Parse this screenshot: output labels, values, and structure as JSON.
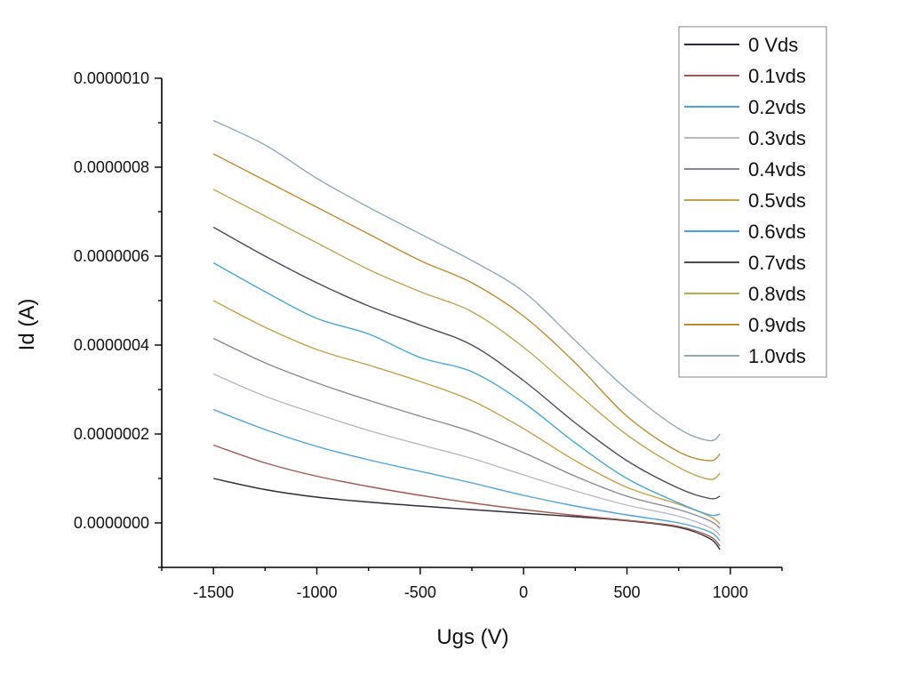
{
  "chart_data": {
    "type": "line",
    "xlabel": "Ugs (V)",
    "ylabel": "Id (A)",
    "xlim": [
      -1750,
      1250
    ],
    "ylim": [
      -1e-07,
      1e-06
    ],
    "x_ticks": [
      -1500,
      -1000,
      -500,
      0,
      500,
      1000
    ],
    "x_tick_labels": [
      "-1500",
      "-1000",
      "-500",
      "0",
      "500",
      "1000"
    ],
    "y_ticks": [
      0.0,
      2e-07,
      4e-07,
      6e-07,
      8e-07,
      1e-06
    ],
    "y_tick_labels": [
      "0.0000000",
      "0.0000002",
      "0.0000004",
      "0.0000006",
      "0.0000008",
      "0.0000010"
    ],
    "legend_position": "top-right",
    "x": [
      -1500,
      -1250,
      -1000,
      -750,
      -500,
      -250,
      0,
      250,
      500,
      750,
      900,
      950
    ],
    "series": [
      {
        "name": "0 Vds",
        "color": "#2b2b3a",
        "values": [
          1e-07,
          7.5e-08,
          5.8e-08,
          4.7e-08,
          3.8e-08,
          3e-08,
          2.2e-08,
          1.4e-08,
          5e-09,
          -1e-08,
          -3.5e-08,
          -6e-08
        ]
      },
      {
        "name": "0.1vds",
        "color": "#a3584f",
        "values": [
          1.75e-07,
          1.35e-07,
          1.05e-07,
          8.2e-08,
          6.2e-08,
          4.5e-08,
          3e-08,
          1.7e-08,
          6e-09,
          -8e-09,
          -3e-08,
          -5.2e-08
        ]
      },
      {
        "name": "0.2vds",
        "color": "#4ca3dd",
        "values": [
          2.55e-07,
          2.1e-07,
          1.72e-07,
          1.42e-07,
          1.16e-07,
          9e-08,
          6.2e-08,
          3.8e-08,
          1.8e-08,
          0.0,
          -2e-08,
          -4e-08
        ]
      },
      {
        "name": "0.3vds",
        "color": "#b8b8c4",
        "values": [
          3.35e-07,
          2.85e-07,
          2.45e-07,
          2.08e-07,
          1.76e-07,
          1.45e-07,
          1.08e-07,
          7.2e-08,
          4e-08,
          1.5e-08,
          -1e-08,
          -2.8e-08
        ]
      },
      {
        "name": "0.4vds",
        "color": "#8a8a96",
        "values": [
          4.15e-07,
          3.6e-07,
          3.15e-07,
          2.76e-07,
          2.4e-07,
          2.05e-07,
          1.58e-07,
          1.05e-07,
          6e-08,
          3e-08,
          5e-09,
          -1.2e-08
        ]
      },
      {
        "name": "0.5vds",
        "color": "#c8a048",
        "values": [
          5e-07,
          4.4e-07,
          3.9e-07,
          3.55e-07,
          3.18e-07,
          2.75e-07,
          2.12e-07,
          1.4e-07,
          8e-08,
          4.2e-08,
          1.5e-08,
          -2e-09
        ]
      },
      {
        "name": "0.6vds",
        "color": "#46a8d6",
        "values": [
          5.85e-07,
          5.2e-07,
          4.6e-07,
          4.25e-07,
          3.72e-07,
          3.4e-07,
          2.7e-07,
          1.8e-07,
          1e-07,
          4.5e-08,
          1.8e-08,
          2e-08
        ]
      },
      {
        "name": "0.7vds",
        "color": "#4a4a5c",
        "values": [
          6.65e-07,
          6e-07,
          5.4e-07,
          4.88e-07,
          4.45e-07,
          4e-07,
          3.2e-07,
          2.25e-07,
          1.4e-07,
          7.8e-08,
          5.5e-08,
          6e-08
        ]
      },
      {
        "name": "0.8vds",
        "color": "#bfa650",
        "values": [
          7.5e-07,
          6.9e-07,
          6.3e-07,
          5.7e-07,
          5.2e-07,
          4.75e-07,
          3.95e-07,
          2.95e-07,
          1.98e-07,
          1.25e-07,
          9.8e-08,
          1.12e-07
        ]
      },
      {
        "name": "0.9vds",
        "color": "#c08a2c",
        "values": [
          8.3e-07,
          7.7e-07,
          7.1e-07,
          6.5e-07,
          5.9e-07,
          5.4e-07,
          4.65e-07,
          3.6e-07,
          2.4e-07,
          1.6e-07,
          1.4e-07,
          1.55e-07
        ]
      },
      {
        "name": "1.0vds",
        "color": "#8eaabc",
        "values": [
          9.05e-07,
          8.5e-07,
          7.75e-07,
          7.1e-07,
          6.5e-07,
          5.9e-07,
          5.2e-07,
          4.1e-07,
          3e-07,
          2.12e-07,
          1.85e-07,
          2e-07
        ]
      }
    ]
  }
}
